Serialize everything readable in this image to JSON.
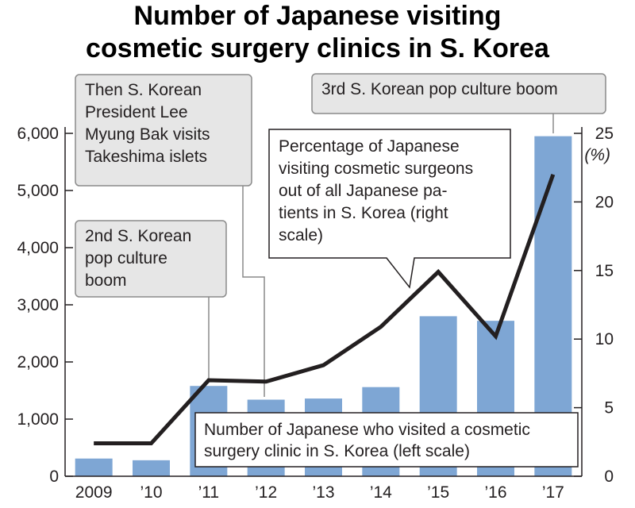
{
  "chart_data": {
    "type": "bar",
    "title_lines": [
      "Number of Japanese visiting",
      "cosmetic surgery clinics in S. Korea"
    ],
    "categories": [
      "2009",
      "’10",
      "’11",
      "’12",
      "’13",
      "’14",
      "’15",
      "’16",
      "’17"
    ],
    "series": [
      {
        "name": "Number of Japanese who visited a cosmetic surgery clinic in S. Korea (left scale)",
        "type": "bar",
        "axis": "left",
        "values": [
          310,
          280,
          1580,
          1340,
          1360,
          1560,
          2800,
          2720,
          5950
        ],
        "color": "#7ea6d4"
      },
      {
        "name": "Percentage of Japanese visiting cosmetic surgeons out of all Japanese patients in S. Korea (right scale)",
        "type": "line",
        "axis": "right",
        "values": [
          2.4,
          2.4,
          7.0,
          6.9,
          8.1,
          10.9,
          14.9,
          10.2,
          22.0
        ],
        "color": "#231f20"
      }
    ],
    "left_axis": {
      "ylim": [
        0,
        6000
      ],
      "ticks": [
        0,
        1000,
        2000,
        3000,
        4000,
        5000,
        6000
      ],
      "tick_labels": [
        "0",
        "1,000",
        "2,000",
        "3,000",
        "4,000",
        "5,000",
        "6,000"
      ]
    },
    "right_axis": {
      "ylim": [
        0,
        25
      ],
      "ticks": [
        0,
        5,
        10,
        15,
        20,
        25
      ],
      "tick_labels": [
        "0",
        "5",
        "10",
        "15",
        "20",
        "25"
      ],
      "unit": "(%)"
    },
    "annotations": [
      {
        "category": "’11",
        "lines": [
          "2nd S. Korean",
          "pop culture",
          "boom"
        ]
      },
      {
        "category": "’12",
        "lines": [
          "Then S. Korean",
          "President Lee",
          "Myung Bak visits",
          "Takeshima islets"
        ]
      },
      {
        "category": "’17",
        "lines": [
          "3rd S. Korean pop culture boom"
        ]
      }
    ],
    "series_callouts": {
      "line": [
        "Percentage of Japanese",
        "visiting cosmetic surgeons",
        "out of all Japanese pa-",
        "tients in S. Korea (right",
        "scale)"
      ],
      "bar": [
        "Number of Japanese who visited a cosmetic",
        "surgery clinic in S. Korea (left scale)"
      ]
    },
    "grid": false,
    "colors": {
      "bar": "#7ea6d4",
      "line": "#231f20",
      "annotation_fill": "#e6e6e6",
      "annotation_border": "#8a8a8a",
      "callout_fill": "#ffffff"
    }
  }
}
